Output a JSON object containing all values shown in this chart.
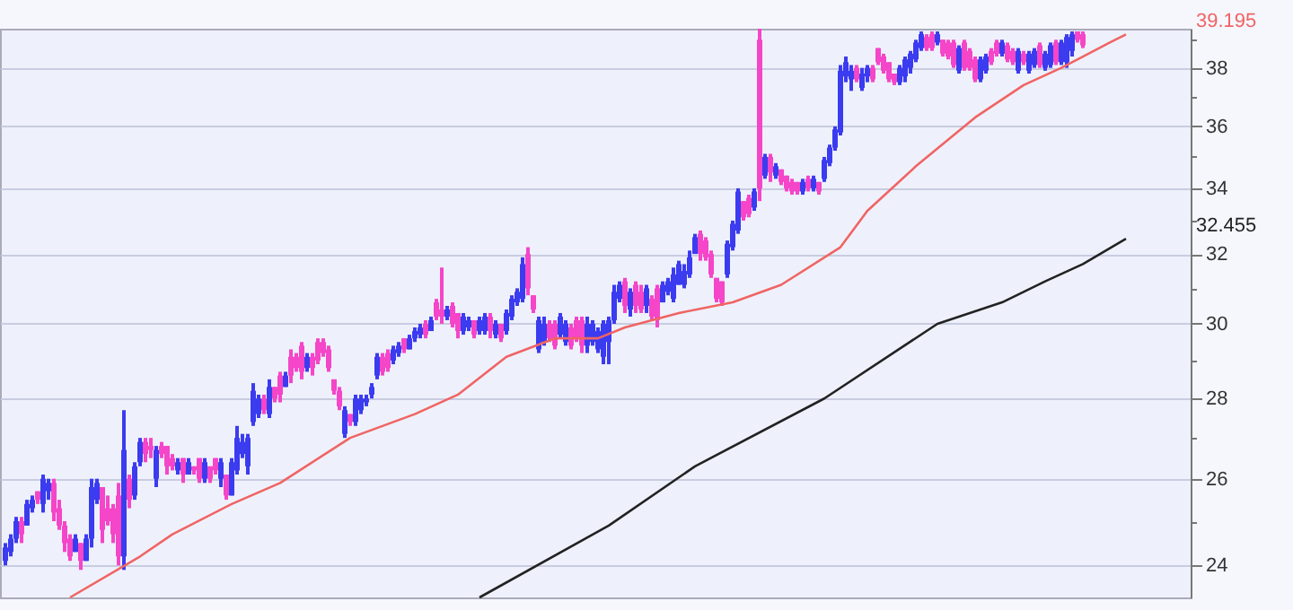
{
  "chart_data": {
    "type": "candlestick",
    "log": true,
    "grid": "y",
    "tick_labels": "y",
    "ylim": [
      23.3,
      39.4
    ],
    "yticks": [
      24,
      {
        "value": 25,
        "label": null
      },
      26,
      {
        "value": 27,
        "label": null
      },
      28,
      {
        "value": 29,
        "label": null
      },
      30,
      {
        "value": 31,
        "label": null
      },
      32,
      {
        "value": 33,
        "label": null
      },
      34,
      {
        "value": 35,
        "label": null
      },
      36,
      {
        "value": 37,
        "label": null
      },
      38,
      {
        "value": 39,
        "label": null
      }
    ],
    "categories": [
      null,
      null,
      null,
      null,
      null,
      null,
      null,
      null,
      null,
      null,
      null,
      null,
      null,
      null,
      null,
      null,
      null,
      null,
      null,
      null,
      null,
      null,
      null,
      null,
      null,
      null,
      null,
      null,
      null,
      null,
      null,
      null,
      null,
      null,
      null,
      null,
      null,
      null,
      null,
      null,
      null,
      null,
      null,
      null,
      null,
      null,
      null,
      null,
      null,
      null,
      null,
      null,
      null,
      null,
      null,
      null,
      null,
      null,
      null,
      null,
      null,
      null,
      null,
      null,
      null,
      null,
      null,
      null,
      null,
      null,
      null,
      null,
      null,
      null,
      null,
      null,
      null,
      null,
      null,
      null,
      null,
      null,
      null,
      null,
      null,
      null,
      null,
      null,
      null,
      null,
      null,
      null,
      null,
      null,
      null,
      null,
      null,
      null,
      null,
      null,
      null,
      null,
      null,
      null,
      null,
      null,
      null,
      null,
      null,
      null,
      null,
      null,
      null,
      null,
      null,
      null,
      null,
      null,
      null,
      null,
      null,
      null,
      null,
      null,
      null,
      null,
      null,
      null,
      null,
      null,
      null,
      null,
      null,
      null,
      null,
      null,
      null,
      null,
      null,
      null,
      null,
      null,
      null,
      null,
      null,
      null,
      null,
      null,
      null,
      null,
      null,
      null,
      null,
      null,
      null,
      null,
      null,
      null,
      null,
      null,
      null,
      null,
      null,
      null,
      null,
      null,
      null,
      null,
      null,
      null,
      null,
      null,
      null,
      null,
      null,
      null,
      null,
      null,
      null,
      null,
      null,
      null,
      null,
      null,
      null,
      null,
      null,
      null,
      null,
      null,
      null,
      null,
      null,
      null,
      null,
      null,
      null,
      null,
      null,
      null,
      null,
      null,
      null,
      null,
      null,
      null,
      null,
      null,
      null,
      null,
      null,
      null,
      null,
      null,
      null,
      null,
      null,
      null,
      null,
      null
    ],
    "ohlc": [
      [
        24.1,
        24.5,
        24.0,
        24.4
      ],
      [
        24.3,
        24.7,
        24.2,
        24.6
      ],
      [
        24.6,
        25.1,
        24.5,
        25.0
      ],
      [
        25.0,
        25.1,
        24.5,
        24.7
      ],
      [
        24.9,
        25.5,
        24.9,
        25.4
      ],
      [
        25.3,
        25.6,
        25.2,
        25.5
      ],
      [
        25.7,
        25.7,
        25.4,
        25.5
      ],
      [
        25.4,
        26.1,
        25.2,
        26.0
      ],
      [
        25.7,
        26.0,
        25.5,
        25.9
      ],
      [
        25.9,
        26.0,
        25.0,
        25.2
      ],
      [
        25.3,
        25.5,
        24.8,
        24.9
      ],
      [
        24.9,
        25.0,
        24.3,
        24.5
      ],
      [
        24.6,
        24.7,
        24.1,
        24.2
      ],
      [
        24.3,
        24.7,
        24.3,
        24.6
      ],
      [
        24.5,
        24.5,
        23.9,
        24.1
      ],
      [
        24.1,
        24.7,
        24.1,
        24.6
      ],
      [
        24.6,
        26.0,
        24.4,
        25.8
      ],
      [
        25.5,
        26.0,
        25.4,
        25.9
      ],
      [
        25.8,
        25.8,
        24.5,
        24.8
      ],
      [
        25.3,
        25.6,
        24.9,
        25.0
      ],
      [
        25.3,
        25.4,
        24.5,
        24.7
      ],
      [
        25.6,
        25.9,
        24.0,
        24.2
      ],
      [
        24.2,
        27.7,
        23.9,
        26.7
      ],
      [
        26.0,
        26.1,
        25.3,
        25.5
      ],
      [
        25.6,
        26.4,
        25.5,
        26.3
      ],
      [
        26.4,
        27.0,
        26.3,
        26.9
      ],
      [
        26.9,
        27.0,
        26.4,
        26.6
      ],
      [
        26.8,
        27.0,
        26.5,
        26.7
      ],
      [
        26.0,
        26.8,
        25.8,
        26.7
      ],
      [
        26.8,
        26.9,
        26.5,
        26.6
      ],
      [
        26.8,
        26.8,
        26.1,
        26.3
      ],
      [
        26.5,
        26.6,
        26.2,
        26.3
      ],
      [
        26.2,
        26.5,
        26.1,
        26.4
      ],
      [
        26.5,
        26.5,
        25.9,
        26.1
      ],
      [
        26.1,
        26.5,
        26.1,
        26.4
      ],
      [
        26.3,
        26.3,
        26.1,
        26.2
      ],
      [
        26.5,
        26.5,
        25.9,
        26.0
      ],
      [
        26.0,
        26.5,
        25.9,
        26.4
      ],
      [
        26.3,
        26.3,
        25.9,
        26.0
      ],
      [
        26.5,
        26.5,
        26.1,
        26.2
      ],
      [
        26.0,
        26.5,
        25.8,
        26.4
      ],
      [
        26.1,
        26.1,
        25.5,
        25.6
      ],
      [
        25.6,
        26.5,
        25.6,
        26.4
      ],
      [
        26.2,
        27.3,
        26.1,
        27.0
      ],
      [
        26.6,
        27.1,
        26.5,
        26.9
      ],
      [
        26.3,
        27.1,
        26.1,
        27.0
      ],
      [
        27.4,
        28.4,
        27.3,
        28.2
      ],
      [
        27.6,
        28.1,
        27.5,
        28.0
      ],
      [
        28.0,
        28.1,
        27.6,
        27.7
      ],
      [
        27.6,
        28.5,
        27.5,
        28.3
      ],
      [
        28.3,
        28.3,
        27.9,
        28.0
      ],
      [
        28.6,
        28.7,
        27.9,
        28.1
      ],
      [
        28.3,
        28.7,
        28.3,
        28.6
      ],
      [
        29.1,
        29.3,
        28.4,
        28.6
      ],
      [
        29.1,
        29.2,
        28.7,
        28.8
      ],
      [
        29.4,
        29.5,
        28.5,
        28.7
      ],
      [
        28.8,
        29.2,
        28.7,
        29.1
      ],
      [
        29.1,
        29.2,
        28.6,
        28.8
      ],
      [
        29.5,
        29.6,
        28.9,
        29.0
      ],
      [
        29.5,
        29.6,
        29.1,
        29.2
      ],
      [
        29.3,
        29.4,
        28.7,
        28.8
      ],
      [
        28.5,
        28.5,
        28.1,
        28.2
      ],
      [
        28.2,
        28.3,
        27.7,
        27.8
      ],
      [
        27.1,
        27.8,
        27.0,
        27.7
      ],
      [
        27.6,
        27.6,
        27.3,
        27.4
      ],
      [
        27.4,
        28.1,
        27.3,
        28.0
      ],
      [
        27.7,
        28.1,
        27.6,
        28.0
      ],
      [
        27.9,
        28.1,
        27.8,
        28.0
      ],
      [
        28.1,
        28.4,
        28.0,
        28.3
      ],
      [
        28.6,
        29.2,
        28.5,
        29.1
      ],
      [
        29.1,
        29.2,
        28.6,
        28.7
      ],
      [
        29.2,
        29.3,
        28.7,
        28.8
      ],
      [
        29.0,
        29.4,
        28.9,
        29.3
      ],
      [
        29.2,
        29.5,
        29.1,
        29.4
      ],
      [
        29.6,
        29.6,
        29.2,
        29.3
      ],
      [
        29.3,
        29.7,
        29.3,
        29.6
      ],
      [
        29.6,
        29.9,
        29.5,
        29.8
      ],
      [
        29.7,
        30.0,
        29.6,
        29.9
      ],
      [
        30.0,
        30.1,
        29.6,
        29.7
      ],
      [
        29.8,
        30.2,
        29.8,
        30.1
      ],
      [
        30.6,
        30.7,
        30.1,
        30.2
      ],
      [
        30.4,
        31.6,
        30.0,
        30.2
      ],
      [
        30.2,
        30.5,
        30.1,
        30.4
      ],
      [
        30.5,
        30.6,
        29.9,
        30.0
      ],
      [
        30.3,
        30.3,
        29.6,
        29.8
      ],
      [
        29.8,
        30.3,
        29.7,
        30.2
      ],
      [
        29.9,
        30.2,
        29.8,
        30.1
      ],
      [
        30.1,
        30.1,
        29.6,
        29.7
      ],
      [
        29.8,
        30.2,
        29.7,
        30.1
      ],
      [
        29.8,
        30.3,
        29.7,
        30.2
      ],
      [
        30.2,
        30.3,
        29.6,
        29.8
      ],
      [
        29.7,
        30.1,
        29.6,
        30.0
      ],
      [
        30.0,
        30.0,
        29.5,
        29.6
      ],
      [
        29.8,
        30.4,
        29.7,
        30.3
      ],
      [
        30.2,
        30.8,
        30.1,
        30.7
      ],
      [
        30.6,
        31.0,
        30.5,
        30.9
      ],
      [
        30.7,
        31.9,
        30.6,
        31.7
      ],
      [
        32.0,
        32.2,
        30.8,
        31.0
      ],
      [
        30.8,
        30.8,
        30.3,
        30.4
      ],
      [
        29.3,
        30.2,
        29.2,
        30.1
      ],
      [
        29.5,
        30.2,
        29.4,
        30.0
      ],
      [
        30.0,
        30.1,
        29.5,
        29.6
      ],
      [
        30.0,
        30.1,
        29.3,
        29.4
      ],
      [
        29.7,
        30.3,
        29.6,
        30.2
      ],
      [
        29.5,
        30.1,
        29.4,
        30.0
      ],
      [
        29.9,
        30.0,
        29.3,
        29.4
      ],
      [
        30.1,
        30.2,
        29.5,
        29.6
      ],
      [
        30.1,
        30.2,
        29.2,
        29.4
      ],
      [
        29.4,
        30.2,
        29.2,
        30.0
      ],
      [
        29.5,
        30.1,
        29.4,
        30.0
      ],
      [
        29.3,
        29.9,
        29.2,
        29.8
      ],
      [
        29.1,
        30.1,
        28.9,
        30.0
      ],
      [
        29.5,
        30.2,
        28.9,
        30.1
      ],
      [
        30.1,
        31.1,
        30.0,
        30.9
      ],
      [
        30.7,
        31.2,
        30.6,
        31.1
      ],
      [
        31.2,
        31.3,
        30.3,
        30.5
      ],
      [
        30.4,
        31.0,
        30.2,
        30.9
      ],
      [
        31.1,
        31.2,
        30.3,
        30.5
      ],
      [
        30.9,
        31.1,
        30.3,
        30.4
      ],
      [
        30.5,
        31.1,
        30.3,
        31.0
      ],
      [
        30.7,
        30.8,
        30.1,
        30.2
      ],
      [
        31.0,
        31.1,
        29.9,
        30.1
      ],
      [
        30.6,
        31.2,
        30.6,
        31.1
      ],
      [
        30.9,
        31.3,
        30.8,
        31.2
      ],
      [
        30.7,
        31.6,
        30.6,
        31.4
      ],
      [
        31.1,
        31.8,
        31.1,
        31.7
      ],
      [
        31.1,
        31.7,
        31.0,
        31.5
      ],
      [
        31.4,
        32.1,
        31.3,
        31.9
      ],
      [
        32.0,
        32.6,
        32.0,
        32.5
      ],
      [
        32.6,
        32.7,
        31.8,
        32.0
      ],
      [
        32.4,
        32.5,
        31.8,
        31.9
      ],
      [
        32.0,
        32.1,
        31.3,
        31.4
      ],
      [
        31.3,
        31.3,
        30.6,
        30.7
      ],
      [
        31.2,
        31.2,
        30.5,
        30.6
      ],
      [
        31.4,
        32.4,
        31.3,
        32.3
      ],
      [
        32.2,
        33.0,
        32.1,
        32.9
      ],
      [
        32.7,
        34.0,
        32.6,
        33.9
      ],
      [
        33.6,
        33.6,
        33.0,
        33.1
      ],
      [
        33.7,
        33.8,
        33.1,
        33.2
      ],
      [
        33.4,
        34.0,
        33.3,
        33.9
      ],
      [
        39.0,
        39.4,
        33.6,
        34.0
      ],
      [
        34.4,
        35.1,
        34.3,
        35.0
      ],
      [
        35.0,
        35.1,
        34.2,
        34.5
      ],
      [
        34.4,
        34.8,
        34.3,
        34.7
      ],
      [
        34.6,
        34.6,
        34.1,
        34.2
      ],
      [
        34.4,
        34.4,
        33.9,
        34.0
      ],
      [
        34.2,
        34.3,
        33.8,
        33.9
      ],
      [
        34.2,
        34.2,
        33.8,
        33.9
      ],
      [
        33.9,
        34.3,
        33.8,
        34.2
      ],
      [
        34.3,
        34.4,
        33.9,
        34.0
      ],
      [
        34.0,
        34.4,
        33.9,
        34.3
      ],
      [
        34.2,
        34.2,
        33.8,
        33.9
      ],
      [
        34.3,
        35.0,
        34.2,
        34.9
      ],
      [
        34.8,
        35.4,
        34.7,
        35.3
      ],
      [
        35.3,
        36.0,
        35.2,
        35.9
      ],
      [
        35.8,
        38.1,
        35.7,
        37.9
      ],
      [
        37.7,
        38.4,
        37.5,
        38.2
      ],
      [
        37.6,
        38.1,
        37.2,
        37.9
      ],
      [
        38.0,
        38.1,
        37.5,
        37.6
      ],
      [
        37.3,
        38.0,
        37.2,
        37.8
      ],
      [
        37.7,
        38.1,
        37.5,
        38.0
      ],
      [
        38.0,
        38.1,
        37.5,
        37.6
      ],
      [
        38.7,
        38.7,
        38.1,
        38.2
      ],
      [
        38.4,
        38.5,
        37.8,
        37.9
      ],
      [
        38.2,
        38.2,
        37.5,
        37.6
      ],
      [
        37.8,
        37.8,
        37.4,
        37.5
      ],
      [
        37.5,
        38.1,
        37.4,
        38.0
      ],
      [
        37.7,
        38.4,
        37.5,
        38.3
      ],
      [
        38.0,
        38.6,
        37.8,
        38.5
      ],
      [
        38.3,
        39.0,
        38.2,
        38.9
      ],
      [
        38.7,
        39.3,
        38.6,
        39.2
      ],
      [
        39.1,
        39.2,
        38.6,
        38.7
      ],
      [
        39.2,
        39.3,
        38.6,
        38.7
      ],
      [
        38.9,
        39.3,
        38.8,
        39.2
      ],
      [
        39.0,
        39.0,
        38.4,
        38.5
      ],
      [
        38.9,
        39.0,
        38.3,
        38.4
      ],
      [
        38.9,
        39.0,
        38.0,
        38.1
      ],
      [
        37.9,
        38.8,
        37.8,
        38.7
      ],
      [
        38.9,
        39.0,
        37.9,
        38.0
      ],
      [
        38.6,
        38.7,
        37.9,
        38.0
      ],
      [
        38.3,
        38.4,
        37.5,
        37.6
      ],
      [
        37.6,
        38.4,
        37.5,
        38.3
      ],
      [
        37.9,
        38.5,
        37.8,
        38.4
      ],
      [
        38.6,
        38.7,
        38.1,
        38.2
      ],
      [
        38.9,
        39.0,
        38.4,
        38.5
      ],
      [
        38.5,
        39.0,
        38.4,
        38.9
      ],
      [
        38.8,
        38.9,
        38.2,
        38.3
      ],
      [
        38.6,
        38.7,
        38.1,
        38.2
      ],
      [
        37.9,
        38.7,
        37.8,
        38.6
      ],
      [
        38.5,
        38.6,
        38.1,
        38.2
      ],
      [
        37.9,
        38.6,
        37.8,
        38.5
      ],
      [
        38.1,
        38.7,
        38.0,
        38.6
      ],
      [
        38.8,
        38.9,
        38.0,
        38.1
      ],
      [
        38.0,
        38.6,
        37.9,
        38.5
      ],
      [
        38.1,
        38.9,
        38.0,
        38.8
      ],
      [
        38.9,
        39.0,
        38.1,
        38.2
      ],
      [
        38.2,
        39.0,
        38.1,
        38.9
      ],
      [
        38.2,
        39.2,
        38.0,
        39.1
      ],
      [
        38.6,
        39.3,
        38.4,
        39.2
      ],
      [
        39.3,
        39.3,
        38.9,
        39.0
      ],
      [
        39.2,
        39.3,
        38.7,
        38.8
      ],
      null,
      null,
      null,
      null,
      null,
      null,
      null,
      null,
      null,
      null,
      null,
      null,
      null,
      null,
      null,
      null,
      null,
      null,
      null
    ],
    "colors": [
      "#3b3bf0",
      "#3b3bf0",
      "#3b3bf0",
      "#f545c8",
      "#3b3bf0",
      "#3b3bf0",
      "#f545c8",
      "#3b3bf0",
      "#3b3bf0",
      "#f545c8",
      "#f545c8",
      "#f545c8",
      "#f545c8",
      "#3b3bf0",
      "#f545c8",
      "#3b3bf0",
      "#3b3bf0",
      "#3b3bf0",
      "#f545c8",
      "#f545c8",
      "#f545c8",
      "#f545c8",
      "#3b3bf0",
      "#f545c8",
      "#3b3bf0",
      "#3b3bf0",
      "#f545c8",
      "#f545c8",
      "#3b3bf0",
      "#f545c8",
      "#f545c8",
      "#f545c8",
      "#3b3bf0",
      "#f545c8",
      "#3b3bf0",
      "#f545c8",
      "#f545c8",
      "#3b3bf0",
      "#f545c8",
      "#f545c8",
      "#3b3bf0",
      "#f545c8",
      "#3b3bf0",
      "#3b3bf0",
      "#3b3bf0",
      "#3b3bf0",
      "#3b3bf0",
      "#3b3bf0",
      "#f545c8",
      "#3b3bf0",
      "#f545c8",
      "#f545c8",
      "#3b3bf0",
      "#f545c8",
      "#f545c8",
      "#f545c8",
      "#3b3bf0",
      "#f545c8",
      "#f545c8",
      "#f545c8",
      "#f545c8",
      "#f545c8",
      "#f545c8",
      "#3b3bf0",
      "#f545c8",
      "#3b3bf0",
      "#3b3bf0",
      "#3b3bf0",
      "#3b3bf0",
      "#3b3bf0",
      "#f545c8",
      "#f545c8",
      "#3b3bf0",
      "#3b3bf0",
      "#f545c8",
      "#3b3bf0",
      "#3b3bf0",
      "#3b3bf0",
      "#f545c8",
      "#3b3bf0",
      "#f545c8",
      "#f545c8",
      "#3b3bf0",
      "#f545c8",
      "#f545c8",
      "#3b3bf0",
      "#3b3bf0",
      "#f545c8",
      "#3b3bf0",
      "#3b3bf0",
      "#f545c8",
      "#3b3bf0",
      "#f545c8",
      "#3b3bf0",
      "#3b3bf0",
      "#3b3bf0",
      "#3b3bf0",
      "#f545c8",
      "#f545c8",
      "#3b3bf0",
      "#3b3bf0",
      "#f545c8",
      "#f545c8",
      "#3b3bf0",
      "#3b3bf0",
      "#f545c8",
      "#f545c8",
      "#f545c8",
      "#3b3bf0",
      "#3b3bf0",
      "#3b3bf0",
      "#3b3bf0",
      "#3b3bf0",
      "#3b3bf0",
      "#3b3bf0",
      "#f545c8",
      "#3b3bf0",
      "#f545c8",
      "#f545c8",
      "#3b3bf0",
      "#f545c8",
      "#f545c8",
      "#3b3bf0",
      "#3b3bf0",
      "#3b3bf0",
      "#3b3bf0",
      "#3b3bf0",
      "#3b3bf0",
      "#3b3bf0",
      "#f545c8",
      "#f545c8",
      "#f545c8",
      "#f545c8",
      "#f545c8",
      "#3b3bf0",
      "#3b3bf0",
      "#3b3bf0",
      "#f545c8",
      "#f545c8",
      "#3b3bf0",
      "#f545c8",
      "#3b3bf0",
      "#f545c8",
      "#3b3bf0",
      "#f545c8",
      "#f545c8",
      "#f545c8",
      "#f545c8",
      "#3b3bf0",
      "#f545c8",
      "#3b3bf0",
      "#f545c8",
      "#3b3bf0",
      "#3b3bf0",
      "#3b3bf0",
      "#3b3bf0",
      "#3b3bf0",
      "#3b3bf0",
      "#f545c8",
      "#3b3bf0",
      "#3b3bf0",
      "#f545c8",
      "#f545c8",
      "#f545c8",
      "#f545c8",
      "#f545c8",
      "#3b3bf0",
      "#3b3bf0",
      "#3b3bf0",
      "#3b3bf0",
      "#3b3bf0",
      "#f545c8",
      "#f545c8",
      "#3b3bf0",
      "#f545c8",
      "#f545c8",
      "#f545c8",
      "#3b3bf0",
      "#f545c8",
      "#f545c8",
      "#f545c8",
      "#3b3bf0",
      "#3b3bf0",
      "#f545c8",
      "#f545c8",
      "#3b3bf0",
      "#f545c8",
      "#f545c8",
      "#3b3bf0",
      "#f545c8",
      "#3b3bf0",
      "#3b3bf0",
      "#f545c8",
      "#3b3bf0",
      "#3b3bf0",
      "#f545c8",
      "#3b3bf0",
      "#3b3bf0",
      "#3b3bf0",
      "#f545c8",
      "#f545c8",
      null,
      null,
      null,
      null,
      null,
      null,
      null,
      null,
      null,
      null,
      null,
      null,
      null,
      null,
      null,
      null,
      null,
      null,
      null
    ],
    "series": [
      {
        "type": "line",
        "color": "#f06464",
        "values": [
          null,
          null,
          null,
          null,
          null,
          null,
          null,
          null,
          null,
          null,
          null,
          null,
          23.3,
          null,
          null,
          null,
          null,
          null,
          null,
          null,
          null,
          null,
          null,
          null,
          null,
          24.2,
          null,
          null,
          null,
          null,
          null,
          24.7,
          null,
          null,
          null,
          null,
          null,
          null,
          null,
          null,
          null,
          null,
          25.4,
          null,
          null,
          null,
          null,
          null,
          null,
          null,
          null,
          25.9,
          null,
          null,
          null,
          null,
          null,
          null,
          null,
          null,
          null,
          null,
          null,
          null,
          27.0,
          null,
          null,
          null,
          null,
          null,
          null,
          null,
          null,
          null,
          null,
          null,
          27.6,
          null,
          null,
          null,
          null,
          null,
          null,
          null,
          28.1,
          null,
          null,
          null,
          null,
          null,
          null,
          null,
          null,
          29.1,
          null,
          null,
          null,
          null,
          null,
          null,
          null,
          null,
          29.6,
          null,
          null,
          null,
          null,
          null,
          null,
          null,
          29.6,
          null,
          null,
          null,
          null,
          29.9,
          null,
          null,
          null,
          null,
          null,
          null,
          null,
          null,
          null,
          30.3,
          null,
          null,
          null,
          null,
          null,
          null,
          null,
          null,
          null,
          30.6,
          null,
          null,
          null,
          null,
          null,
          null,
          null,
          null,
          31.1,
          null,
          null,
          null,
          null,
          null,
          null,
          null,
          null,
          null,
          null,
          32.2,
          null,
          null,
          null,
          null,
          33.3,
          null,
          null,
          null,
          null,
          null,
          null,
          null,
          null,
          34.7,
          null,
          null,
          null,
          null,
          null,
          null,
          null,
          null,
          null,
          null,
          36.3,
          null,
          null,
          null,
          null,
          null,
          null,
          null,
          null,
          37.4,
          null,
          null,
          null,
          null,
          null,
          null,
          38.0,
          null,
          null,
          null,
          38.4,
          null,
          null,
          null,
          null,
          38.9,
          null,
          null,
          39.195,
          null,
          null,
          null,
          null,
          null,
          null,
          null,
          null,
          null,
          null,
          null
        ]
      },
      {
        "type": "line",
        "color": "#222222",
        "values": [
          null,
          null,
          null,
          null,
          null,
          null,
          null,
          null,
          null,
          null,
          null,
          null,
          null,
          null,
          null,
          null,
          null,
          null,
          null,
          null,
          null,
          null,
          null,
          null,
          null,
          null,
          null,
          null,
          null,
          null,
          null,
          null,
          null,
          null,
          null,
          null,
          null,
          null,
          null,
          null,
          null,
          null,
          null,
          null,
          null,
          null,
          null,
          null,
          null,
          null,
          null,
          null,
          null,
          null,
          null,
          null,
          null,
          null,
          null,
          null,
          null,
          null,
          null,
          null,
          null,
          null,
          null,
          null,
          null,
          null,
          null,
          null,
          null,
          null,
          null,
          null,
          null,
          null,
          null,
          null,
          null,
          null,
          null,
          null,
          null,
          null,
          null,
          null,
          23.3,
          null,
          null,
          null,
          null,
          null,
          null,
          null,
          null,
          null,
          null,
          null,
          null,
          null,
          null,
          null,
          null,
          null,
          null,
          null,
          null,
          null,
          null,
          null,
          24.9,
          null,
          null,
          null,
          null,
          null,
          null,
          null,
          null,
          null,
          null,
          null,
          null,
          null,
          null,
          null,
          26.3,
          null,
          null,
          null,
          null,
          null,
          null,
          null,
          null,
          null,
          null,
          null,
          null,
          null,
          null,
          null,
          null,
          null,
          null,
          null,
          null,
          null,
          null,
          null,
          28.0,
          null,
          null,
          null,
          null,
          null,
          null,
          null,
          null,
          null,
          null,
          null,
          null,
          null,
          null,
          null,
          null,
          null,
          null,
          null,
          null,
          30.0,
          null,
          null,
          null,
          null,
          null,
          null,
          null,
          null,
          null,
          null,
          null,
          30.6,
          null,
          null,
          null,
          null,
          null,
          null,
          null,
          31.2,
          null,
          null,
          null,
          null,
          null,
          null,
          31.7,
          null,
          null,
          null,
          null,
          null,
          null,
          null,
          32.455,
          null,
          null,
          null,
          null,
          null,
          null,
          null,
          null,
          null,
          null,
          null
        ]
      }
    ],
    "annotations": [
      "39.195",
      "32.455"
    ]
  }
}
